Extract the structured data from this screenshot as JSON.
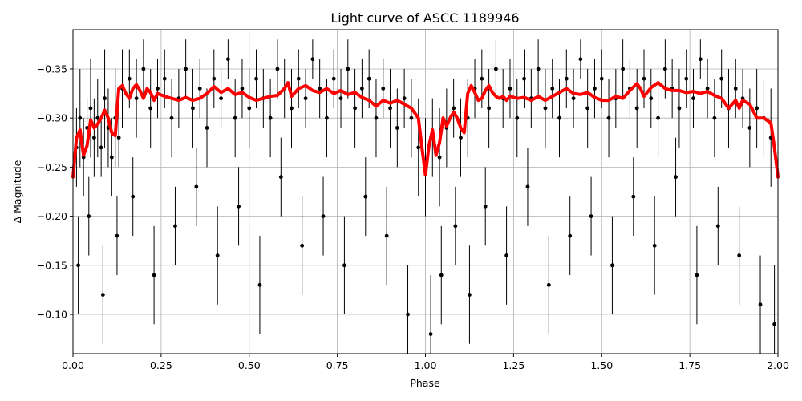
{
  "chart_data": {
    "type": "scatter",
    "title": "Light curve of ASCC 1189946",
    "xlabel": "Phase",
    "ylabel": "Δ Magnitude",
    "xlim": [
      0,
      2
    ],
    "ylim": [
      -0.39,
      -0.06
    ],
    "y_inverted": true,
    "grid": true,
    "xticks": [
      "0.00",
      "0.25",
      "0.50",
      "0.75",
      "1.00",
      "1.25",
      "1.50",
      "1.75",
      "2.00"
    ],
    "xtick_values": [
      0,
      0.25,
      0.5,
      0.75,
      1.0,
      1.25,
      1.5,
      1.75,
      2.0
    ],
    "yticks": [
      "−0.35",
      "−0.30",
      "−0.25",
      "−0.20",
      "−0.15",
      "−0.10"
    ],
    "ytick_values": [
      -0.35,
      -0.3,
      -0.25,
      -0.2,
      -0.15,
      -0.1
    ],
    "series": [
      {
        "kind": "errorbar-points",
        "color": "#000000",
        "x": [
          0.01,
          0.02,
          0.03,
          0.04,
          0.05,
          0.06,
          0.07,
          0.08,
          0.09,
          0.1,
          0.11,
          0.12,
          0.13,
          0.14,
          0.16,
          0.18,
          0.2,
          0.22,
          0.24,
          0.26,
          0.28,
          0.3,
          0.32,
          0.34,
          0.36,
          0.38,
          0.4,
          0.42,
          0.44,
          0.46,
          0.48,
          0.5,
          0.52,
          0.54,
          0.56,
          0.58,
          0.6,
          0.62,
          0.64,
          0.66,
          0.68,
          0.7,
          0.72,
          0.74,
          0.76,
          0.78,
          0.8,
          0.82,
          0.84,
          0.86,
          0.88,
          0.9,
          0.92,
          0.94,
          0.96,
          0.98,
          1.0,
          1.02,
          1.04,
          1.06,
          1.08,
          1.1,
          1.12,
          1.14,
          1.16,
          1.18,
          1.2,
          1.22,
          1.24,
          1.26,
          1.28,
          1.3,
          1.32,
          1.34,
          1.36,
          1.38,
          1.4,
          1.42,
          1.44,
          1.46,
          1.48,
          1.5,
          1.52,
          1.54,
          1.56,
          1.58,
          1.6,
          1.62,
          1.64,
          1.66,
          1.68,
          1.7,
          1.72,
          1.74,
          1.76,
          1.78,
          1.8,
          1.82,
          1.84,
          1.86,
          1.88,
          1.9,
          1.92,
          1.94,
          1.96,
          1.98,
          0.015,
          0.045,
          0.085,
          0.125,
          0.17,
          0.23,
          0.29,
          0.35,
          0.41,
          0.47,
          0.53,
          0.59,
          0.65,
          0.71,
          0.77,
          0.83,
          0.89,
          0.95,
          1.015,
          1.045,
          1.085,
          1.125,
          1.17,
          1.23,
          1.29,
          1.35,
          1.41,
          1.47,
          1.53,
          1.59,
          1.65,
          1.71,
          1.77,
          1.83,
          1.89,
          1.95,
          1.99
        ],
        "y": [
          -0.27,
          -0.3,
          -0.26,
          -0.29,
          -0.31,
          -0.28,
          -0.3,
          -0.27,
          -0.32,
          -0.29,
          -0.26,
          -0.3,
          -0.28,
          -0.33,
          -0.34,
          -0.32,
          -0.35,
          -0.31,
          -0.33,
          -0.34,
          -0.3,
          -0.32,
          -0.35,
          -0.31,
          -0.33,
          -0.29,
          -0.34,
          -0.32,
          -0.36,
          -0.3,
          -0.33,
          -0.31,
          -0.34,
          -0.32,
          -0.3,
          -0.35,
          -0.33,
          -0.31,
          -0.34,
          -0.32,
          -0.36,
          -0.33,
          -0.3,
          -0.34,
          -0.32,
          -0.35,
          -0.31,
          -0.33,
          -0.34,
          -0.3,
          -0.33,
          -0.31,
          -0.29,
          -0.32,
          -0.3,
          -0.27,
          -0.25,
          -0.28,
          -0.26,
          -0.29,
          -0.31,
          -0.28,
          -0.3,
          -0.33,
          -0.34,
          -0.31,
          -0.35,
          -0.32,
          -0.33,
          -0.3,
          -0.34,
          -0.32,
          -0.35,
          -0.31,
          -0.33,
          -0.3,
          -0.34,
          -0.32,
          -0.36,
          -0.31,
          -0.33,
          -0.34,
          -0.3,
          -0.32,
          -0.35,
          -0.33,
          -0.31,
          -0.34,
          -0.32,
          -0.3,
          -0.35,
          -0.33,
          -0.31,
          -0.34,
          -0.32,
          -0.36,
          -0.33,
          -0.3,
          -0.34,
          -0.31,
          -0.33,
          -0.32,
          -0.29,
          -0.31,
          -0.3,
          -0.28,
          -0.15,
          -0.2,
          -0.12,
          -0.18,
          -0.22,
          -0.14,
          -0.19,
          -0.23,
          -0.16,
          -0.21,
          -0.13,
          -0.24,
          -0.17,
          -0.2,
          -0.15,
          -0.22,
          -0.18,
          -0.1,
          -0.08,
          -0.14,
          -0.19,
          -0.12,
          -0.21,
          -0.16,
          -0.23,
          -0.13,
          -0.18,
          -0.2,
          -0.15,
          -0.22,
          -0.17,
          -0.24,
          -0.14,
          -0.19,
          -0.16,
          -0.11,
          -0.09
        ],
        "err": [
          0.04,
          0.05,
          0.04,
          0.03,
          0.05,
          0.04,
          0.04,
          0.03,
          0.05,
          0.04,
          0.04,
          0.05,
          0.03,
          0.04,
          0.03,
          0.04,
          0.03,
          0.04,
          0.03,
          0.03,
          0.04,
          0.03,
          0.03,
          0.04,
          0.03,
          0.04,
          0.03,
          0.03,
          0.02,
          0.04,
          0.03,
          0.04,
          0.03,
          0.03,
          0.04,
          0.03,
          0.03,
          0.04,
          0.03,
          0.03,
          0.02,
          0.03,
          0.04,
          0.03,
          0.03,
          0.03,
          0.04,
          0.03,
          0.03,
          0.04,
          0.03,
          0.04,
          0.04,
          0.03,
          0.04,
          0.05,
          0.05,
          0.04,
          0.05,
          0.04,
          0.03,
          0.04,
          0.04,
          0.03,
          0.03,
          0.04,
          0.03,
          0.03,
          0.03,
          0.04,
          0.03,
          0.03,
          0.03,
          0.04,
          0.03,
          0.04,
          0.03,
          0.03,
          0.02,
          0.04,
          0.03,
          0.03,
          0.04,
          0.03,
          0.03,
          0.03,
          0.04,
          0.03,
          0.03,
          0.04,
          0.03,
          0.03,
          0.04,
          0.03,
          0.03,
          0.02,
          0.03,
          0.04,
          0.03,
          0.04,
          0.03,
          0.03,
          0.04,
          0.04,
          0.04,
          0.05,
          0.05,
          0.04,
          0.05,
          0.04,
          0.04,
          0.05,
          0.04,
          0.04,
          0.05,
          0.04,
          0.05,
          0.04,
          0.05,
          0.04,
          0.05,
          0.04,
          0.05,
          0.05,
          0.06,
          0.05,
          0.04,
          0.05,
          0.04,
          0.05,
          0.04,
          0.05,
          0.04,
          0.04,
          0.05,
          0.04,
          0.05,
          0.04,
          0.05,
          0.04,
          0.05,
          0.05,
          0.06
        ]
      },
      {
        "kind": "line",
        "color": "#ff0000",
        "x": [
          0.0,
          0.01,
          0.02,
          0.03,
          0.04,
          0.05,
          0.06,
          0.07,
          0.08,
          0.09,
          0.1,
          0.11,
          0.12,
          0.13,
          0.14,
          0.15,
          0.16,
          0.17,
          0.18,
          0.19,
          0.2,
          0.21,
          0.22,
          0.23,
          0.24,
          0.26,
          0.28,
          0.3,
          0.32,
          0.34,
          0.36,
          0.38,
          0.4,
          0.42,
          0.44,
          0.46,
          0.48,
          0.5,
          0.52,
          0.54,
          0.56,
          0.58,
          0.6,
          0.61,
          0.62,
          0.64,
          0.66,
          0.68,
          0.7,
          0.72,
          0.74,
          0.76,
          0.78,
          0.8,
          0.82,
          0.84,
          0.86,
          0.88,
          0.9,
          0.92,
          0.94,
          0.96,
          0.98,
          0.99,
          1.0,
          1.01,
          1.02,
          1.03,
          1.04,
          1.05,
          1.06,
          1.07,
          1.08,
          1.09,
          1.1,
          1.11,
          1.12,
          1.13,
          1.14,
          1.15,
          1.16,
          1.17,
          1.18,
          1.19,
          1.2,
          1.21,
          1.22,
          1.23,
          1.24,
          1.26,
          1.28,
          1.3,
          1.32,
          1.34,
          1.36,
          1.38,
          1.4,
          1.42,
          1.44,
          1.46,
          1.48,
          1.5,
          1.52,
          1.54,
          1.56,
          1.58,
          1.6,
          1.61,
          1.62,
          1.64,
          1.66,
          1.68,
          1.7,
          1.72,
          1.74,
          1.76,
          1.78,
          1.8,
          1.82,
          1.84,
          1.86,
          1.88,
          1.89,
          1.9,
          1.92,
          1.94,
          1.96,
          1.98,
          1.99,
          2.0
        ],
        "y": [
          -0.24,
          -0.28,
          -0.288,
          -0.262,
          -0.272,
          -0.298,
          -0.29,
          -0.294,
          -0.3,
          -0.308,
          -0.3,
          -0.285,
          -0.282,
          -0.33,
          -0.333,
          -0.325,
          -0.32,
          -0.33,
          -0.334,
          -0.328,
          -0.32,
          -0.33,
          -0.326,
          -0.318,
          -0.325,
          -0.322,
          -0.32,
          -0.318,
          -0.321,
          -0.318,
          -0.32,
          -0.325,
          -0.332,
          -0.326,
          -0.33,
          -0.324,
          -0.326,
          -0.321,
          -0.318,
          -0.32,
          -0.322,
          -0.323,
          -0.33,
          -0.336,
          -0.322,
          -0.33,
          -0.333,
          -0.328,
          -0.326,
          -0.33,
          -0.325,
          -0.328,
          -0.324,
          -0.326,
          -0.321,
          -0.318,
          -0.312,
          -0.318,
          -0.315,
          -0.318,
          -0.314,
          -0.31,
          -0.3,
          -0.27,
          -0.242,
          -0.272,
          -0.288,
          -0.262,
          -0.275,
          -0.3,
          -0.292,
          -0.3,
          -0.306,
          -0.3,
          -0.29,
          -0.285,
          -0.325,
          -0.333,
          -0.326,
          -0.318,
          -0.32,
          -0.328,
          -0.333,
          -0.326,
          -0.322,
          -0.32,
          -0.322,
          -0.318,
          -0.322,
          -0.32,
          -0.321,
          -0.318,
          -0.322,
          -0.318,
          -0.322,
          -0.326,
          -0.33,
          -0.325,
          -0.324,
          -0.326,
          -0.321,
          -0.318,
          -0.318,
          -0.322,
          -0.32,
          -0.328,
          -0.335,
          -0.33,
          -0.322,
          -0.331,
          -0.336,
          -0.33,
          -0.328,
          -0.328,
          -0.326,
          -0.327,
          -0.325,
          -0.327,
          -0.323,
          -0.32,
          -0.31,
          -0.318,
          -0.31,
          -0.318,
          -0.314,
          -0.3,
          -0.3,
          -0.295,
          -0.27,
          -0.24
        ]
      }
    ]
  }
}
